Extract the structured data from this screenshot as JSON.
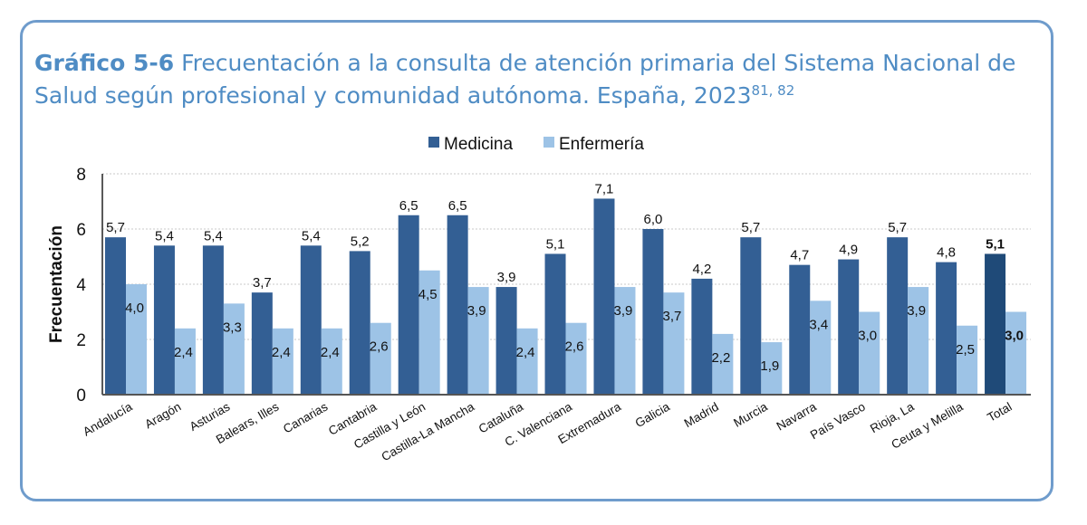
{
  "title": {
    "label": "Gráfico 5-6",
    "text": " Frecuentación a la consulta de atención primaria del Sistema Nacional de Salud según profesional y comunidad autónoma. España, 2023",
    "superscript": "81, 82"
  },
  "chart_data": {
    "type": "bar",
    "ylabel": "Frecuentación",
    "xlabel": "",
    "ylim": [
      0,
      8
    ],
    "yticks": [
      0,
      2,
      4,
      6,
      8
    ],
    "grid": true,
    "legend_position": "top",
    "categories": [
      "Andalucía",
      "Aragón",
      "Asturias",
      "Balears, Illes",
      "Canarias",
      "Cantabria",
      "Castilla y León",
      "Castilla-La Mancha",
      "Cataluña",
      "C. Valenciana",
      "Extremadura",
      "Galicia",
      "Madrid",
      "Murcia",
      "Navarra",
      "País Vasco",
      "Rioja, La",
      "Ceuta y Melilla",
      "Total"
    ],
    "series": [
      {
        "name": "Medicina",
        "color": "#335f94",
        "highlight_color": "#1f4a78",
        "values": [
          5.7,
          5.4,
          5.4,
          3.7,
          5.4,
          5.2,
          6.5,
          6.5,
          3.9,
          5.1,
          7.1,
          6.0,
          4.2,
          5.7,
          4.7,
          4.9,
          5.7,
          4.8,
          5.1
        ],
        "labels": [
          "5,7",
          "5,4",
          "5,4",
          "3,7",
          "5,4",
          "5,2",
          "6,5",
          "6,5",
          "3,9",
          "5,1",
          "7,1",
          "6,0",
          "4,2",
          "5,7",
          "4,7",
          "4,9",
          "5,7",
          "4,8",
          "5,1"
        ]
      },
      {
        "name": "Enfermería",
        "color": "#9dc3e6",
        "values": [
          4.0,
          2.4,
          3.3,
          2.4,
          2.4,
          2.6,
          4.5,
          3.9,
          2.4,
          2.6,
          3.9,
          3.7,
          2.2,
          1.9,
          3.4,
          3.0,
          3.9,
          2.5,
          3.0
        ],
        "labels": [
          "4,0",
          "2,4",
          "3,3",
          "2,4",
          "2,4",
          "2,6",
          "4,5",
          "3,9",
          "2,4",
          "2,6",
          "3,9",
          "3,7",
          "2,2",
          "1,9",
          "3,4",
          "3,0",
          "3,9",
          "2,5",
          "3,0"
        ]
      }
    ]
  }
}
